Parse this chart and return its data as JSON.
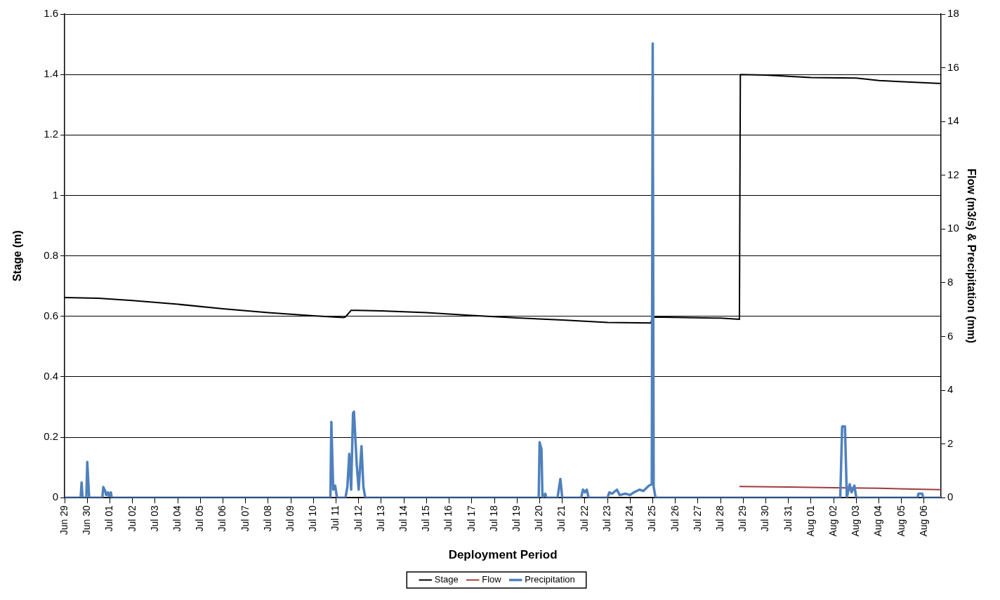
{
  "chart_data": {
    "type": "line",
    "xlabel": "Deployment Period",
    "ylabel": "Stage (m)",
    "y2label": "Flow (m3/s) & Precipitation (mm)",
    "xlim": [
      "--06-29T00:00",
      "--08-06T18:00"
    ],
    "xticks": [
      {
        "value": "--06-29",
        "label": "Jun 29"
      },
      {
        "value": "--06-30",
        "label": "Jun 30"
      },
      {
        "value": "--07-01",
        "label": "Jul 01"
      },
      {
        "value": "--07-02",
        "label": "Jul 02"
      },
      {
        "value": "--07-03",
        "label": "Jul 03"
      },
      {
        "value": "--07-04",
        "label": "Jul 04"
      },
      {
        "value": "--07-05",
        "label": "Jul 05"
      },
      {
        "value": "--07-06",
        "label": "Jul 06"
      },
      {
        "value": "--07-07",
        "label": "Jul 07"
      },
      {
        "value": "--07-08",
        "label": "Jul 08"
      },
      {
        "value": "--07-09",
        "label": "Jul 09"
      },
      {
        "value": "--07-10",
        "label": "Jul 10"
      },
      {
        "value": "--07-11",
        "label": "Jul 11"
      },
      {
        "value": "--07-12",
        "label": "Jul 12"
      },
      {
        "value": "--07-13",
        "label": "Jul 13"
      },
      {
        "value": "--07-14",
        "label": "Jul 14"
      },
      {
        "value": "--07-15",
        "label": "Jul 15"
      },
      {
        "value": "--07-16",
        "label": "Jul 16"
      },
      {
        "value": "--07-17",
        "label": "Jul 17"
      },
      {
        "value": "--07-18",
        "label": "Jul 18"
      },
      {
        "value": "--07-19",
        "label": "Jul 19"
      },
      {
        "value": "--07-20",
        "label": "Jul 20"
      },
      {
        "value": "--07-21",
        "label": "Jul 21"
      },
      {
        "value": "--07-22",
        "label": "Jul 22"
      },
      {
        "value": "--07-23",
        "label": "Jul 23"
      },
      {
        "value": "--07-24",
        "label": "Jul 24"
      },
      {
        "value": "--07-25",
        "label": "Jul 25"
      },
      {
        "value": "--07-26",
        "label": "Jul 26"
      },
      {
        "value": "--07-27",
        "label": "Jul 27"
      },
      {
        "value": "--07-28",
        "label": "Jul 28"
      },
      {
        "value": "--07-29",
        "label": "Jul 29"
      },
      {
        "value": "--07-30",
        "label": "Jul 30"
      },
      {
        "value": "--07-31",
        "label": "Jul 31"
      },
      {
        "value": "--08-01",
        "label": "Aug 01"
      },
      {
        "value": "--08-02",
        "label": "Aug 02"
      },
      {
        "value": "--08-03",
        "label": "Aug 03"
      },
      {
        "value": "--08-04",
        "label": "Aug 04"
      },
      {
        "value": "--08-05",
        "label": "Aug 05"
      },
      {
        "value": "--08-06",
        "label": "Aug 06"
      }
    ],
    "ylim": [
      0,
      1.6
    ],
    "yticks": [
      0,
      0.2,
      0.4,
      0.6,
      0.8,
      1,
      1.2,
      1.4,
      1.6
    ],
    "y2lim": [
      0,
      18
    ],
    "y2ticks": [
      0,
      2,
      4,
      6,
      8,
      10,
      12,
      14,
      16,
      18
    ],
    "grid": "y",
    "legend": "bottom",
    "series": [
      {
        "name": "Stage",
        "color": "#000000",
        "x": [
          "--06-29T00:00",
          "--06-30T12:00",
          "--07-02T00:00",
          "--07-04T00:00",
          "--07-06T00:00",
          "--07-08T00:00",
          "--07-10T00:00",
          "--07-11T08:00",
          "--07-11T10:00",
          "--07-11T16:00",
          "--07-13T00:00",
          "--07-15T00:00",
          "--07-17T00:00",
          "--07-19T00:00",
          "--07-21T00:00",
          "--07-23T00:00",
          "--07-24T22:00",
          "--07-25T00:00",
          "--07-28T00:00",
          "--07-28T20:00",
          "--07-28T21:00",
          "--07-30T00:00",
          "--08-01T00:00",
          "--08-03T00:00",
          "--08-04T00:00",
          "--08-06T18:00"
        ],
        "values": [
          0.662,
          0.66,
          0.652,
          0.64,
          0.625,
          0.612,
          0.602,
          0.596,
          0.598,
          0.62,
          0.618,
          0.612,
          0.603,
          0.595,
          0.588,
          0.58,
          0.578,
          0.598,
          0.594,
          0.59,
          1.4,
          1.398,
          1.39,
          1.388,
          1.38,
          1.37
        ]
      },
      {
        "name": "Flow",
        "color": "#a03c3a",
        "axis": "y2",
        "x": [
          "--07-28T20:00",
          "--07-31T00:00",
          "--08-02T00:00",
          "--08-04T00:00",
          "--08-05T12:00",
          "--08-06T18:00"
        ],
        "values": [
          0.42,
          0.4,
          0.37,
          0.35,
          0.32,
          0.3
        ]
      },
      {
        "name": "Precipitation",
        "color": "#4f81bd",
        "axis": "y2",
        "x": [
          "--06-29T00:00",
          "--06-29T17:00",
          "--06-29T18:00",
          "--06-29T19:00",
          "--06-29T23:00",
          "--06-30T00:00",
          "--06-30T02:00",
          "--06-30T16:00",
          "--06-30T17:00",
          "--06-30T19:00",
          "--06-30T20:00",
          "--06-30T22:00",
          "--06-30T23:00",
          "--07-01T01:00",
          "--07-01T02:00",
          "--07-10T18:00",
          "--07-10T19:00",
          "--07-10T21:00",
          "--07-10T23:00",
          "--07-11T01:00",
          "--07-11T10:00",
          "--07-11T12:00",
          "--07-11T14:00",
          "--07-11T16:00",
          "--07-11T18:00",
          "--07-11T19:00",
          "--07-11T22:00",
          "--07-12T00:00",
          "--07-12T03:00",
          "--07-12T05:00",
          "--07-12T07:00",
          "--07-19T23:00",
          "--07-20T00:00",
          "--07-20T02:00",
          "--07-20T03:00",
          "--07-20T06:00",
          "--07-20T07:00",
          "--07-20T19:00",
          "--07-20T22:00",
          "--07-21T00:00",
          "--07-21T20:00",
          "--07-21T22:00",
          "--07-22T00:00",
          "--07-22T02:00",
          "--07-22T04:00",
          "--07-23T00:00",
          "--07-23T02:00",
          "--07-23T05:00",
          "--07-23T10:00",
          "--07-23T13:00",
          "--07-23T19:00",
          "--07-24T00:00",
          "--07-24T04:00",
          "--07-24T10:00",
          "--07-24T14:00",
          "--07-24T20:00",
          "--07-24T23:00",
          "--07-25T00:00",
          "--07-25T01:00",
          "--07-25T03:00",
          "--08-02T07:00",
          "--08-02T09:00",
          "--08-02T12:00",
          "--08-02T14:00",
          "--08-02T17:00",
          "--08-02T19:00",
          "--08-02T22:00",
          "--08-03T00:00",
          "--08-05T17:00",
          "--08-05T18:00",
          "--08-05T22:00",
          "--08-05T23:00",
          "--08-06T18:00"
        ],
        "values": [
          0,
          0,
          0.57,
          0,
          0,
          1.33,
          0,
          0,
          0.4,
          0.25,
          0.1,
          0.2,
          0.05,
          0.2,
          0,
          0,
          2.82,
          0.3,
          0.45,
          0,
          0,
          0.4,
          1.63,
          0.3,
          3.15,
          3.2,
          1.2,
          0.3,
          1.92,
          0.4,
          0,
          0,
          2.06,
          1.8,
          0,
          0.15,
          0,
          0,
          0.7,
          0,
          0,
          0.3,
          0.2,
          0.3,
          0,
          0,
          0.2,
          0.15,
          0.3,
          0.1,
          0.15,
          0.1,
          0.2,
          0.3,
          0.25,
          0.45,
          0.5,
          16.9,
          0.4,
          0,
          0,
          2.65,
          2.65,
          0,
          0.5,
          0.2,
          0.45,
          0,
          0,
          0.15,
          0.15,
          0,
          0
        ]
      }
    ]
  }
}
